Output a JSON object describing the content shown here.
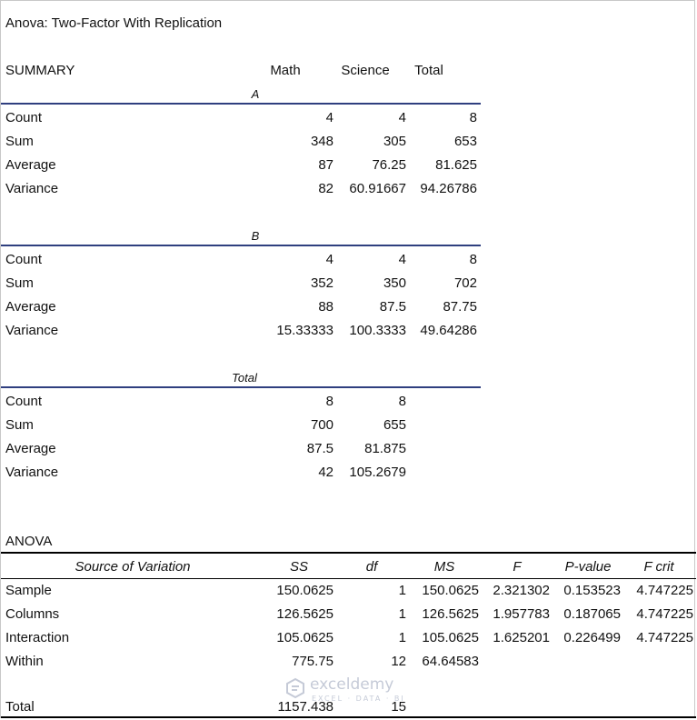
{
  "title": "Anova: Two-Factor With Replication",
  "summary": {
    "label": "SUMMARY",
    "columns": [
      "Math",
      "Science",
      "Total"
    ],
    "groups": [
      {
        "name": "A",
        "rows": [
          {
            "label": "Count",
            "values": [
              "4",
              "4",
              "8"
            ]
          },
          {
            "label": "Sum",
            "values": [
              "348",
              "305",
              "653"
            ]
          },
          {
            "label": "Average",
            "values": [
              "87",
              "76.25",
              "81.625"
            ]
          },
          {
            "label": "Variance",
            "values": [
              "82",
              "60.91667",
              "94.26786"
            ]
          }
        ]
      },
      {
        "name": "B",
        "rows": [
          {
            "label": "Count",
            "values": [
              "4",
              "4",
              "8"
            ]
          },
          {
            "label": "Sum",
            "values": [
              "352",
              "350",
              "702"
            ]
          },
          {
            "label": "Average",
            "values": [
              "88",
              "87.5",
              "87.75"
            ]
          },
          {
            "label": "Variance",
            "values": [
              "15.33333",
              "100.3333",
              "49.64286"
            ]
          }
        ]
      },
      {
        "name": "Total",
        "rows": [
          {
            "label": "Count",
            "values": [
              "8",
              "8"
            ]
          },
          {
            "label": "Sum",
            "values": [
              "700",
              "655"
            ]
          },
          {
            "label": "Average",
            "values": [
              "87.5",
              "81.875"
            ]
          },
          {
            "label": "Variance",
            "values": [
              "42",
              "105.2679"
            ]
          }
        ]
      }
    ]
  },
  "anova": {
    "label": "ANOVA",
    "headers": [
      "Source of Variation",
      "SS",
      "df",
      "MS",
      "F",
      "P-value",
      "F crit"
    ],
    "rows": [
      {
        "values": [
          "Sample",
          "150.0625",
          "1",
          "150.0625",
          "2.321302",
          "0.153523",
          "4.747225"
        ]
      },
      {
        "values": [
          "Columns",
          "126.5625",
          "1",
          "126.5625",
          "1.957783",
          "0.187065",
          "4.747225"
        ]
      },
      {
        "values": [
          "Interaction",
          "105.0625",
          "1",
          "105.0625",
          "1.625201",
          "0.226499",
          "4.747225"
        ]
      },
      {
        "values": [
          "Within",
          "775.75",
          "12",
          "64.64583",
          "",
          "",
          ""
        ]
      }
    ],
    "total": {
      "values": [
        "Total",
        "1157.438",
        "15",
        "",
        "",
        "",
        ""
      ]
    }
  },
  "watermark": {
    "name": "exceldemy",
    "tagline": "EXCEL · DATA · BI",
    "color": "#7f8ca8",
    "icon": "exceldemy-logo-icon"
  }
}
